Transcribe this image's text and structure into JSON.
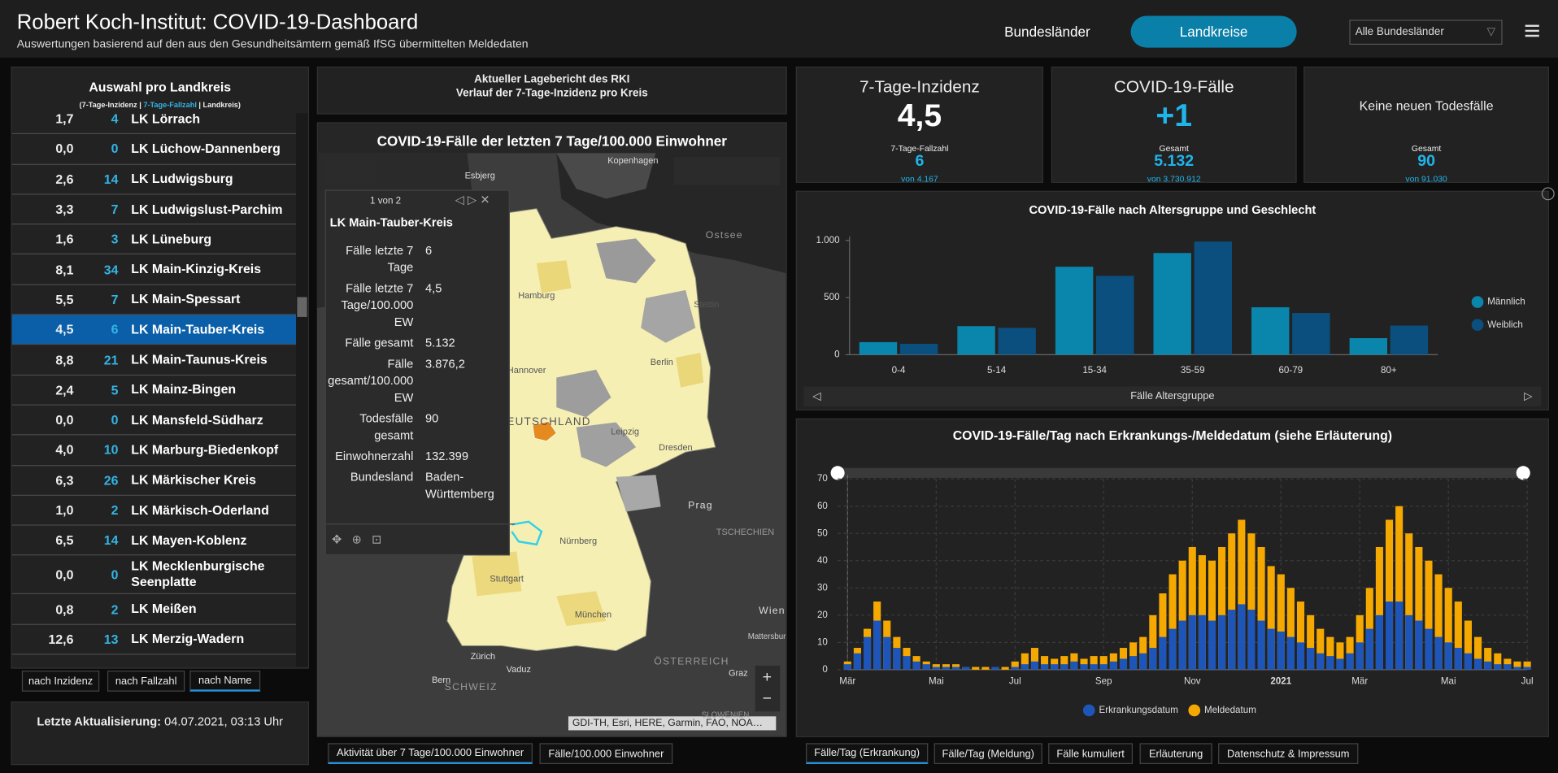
{
  "header": {
    "title": "Robert Koch-Institut: COVID-19-Dashboard",
    "subtitle": "Auswertungen basierend auf den aus den Gesundheitsämtern gemäß IfSG übermittelten Meldedaten",
    "nav": [
      "Bundesländer",
      "Landkreise"
    ],
    "dropdown": "Alle Bundesländer"
  },
  "selection": {
    "title": "Auswahl pro Landkreis",
    "legend": [
      "(7-Tage-Inzidenz |",
      "7-Tage-Fallzahl",
      "| Landkreis)"
    ],
    "rows": [
      [
        "1,7",
        4,
        "LK Lörrach"
      ],
      [
        "0,0",
        0,
        "LK Lüchow-Dannenberg"
      ],
      [
        "2,6",
        14,
        "LK Ludwigsburg"
      ],
      [
        "3,3",
        7,
        "LK Ludwigslust-Parchim"
      ],
      [
        "1,6",
        3,
        "LK Lüneburg"
      ],
      [
        "8,1",
        34,
        "LK Main-Kinzig-Kreis"
      ],
      [
        "5,5",
        7,
        "LK Main-Spessart"
      ],
      [
        "4,5",
        6,
        "LK Main-Tauber-Kreis"
      ],
      [
        "8,8",
        21,
        "LK Main-Taunus-Kreis"
      ],
      [
        "2,4",
        5,
        "LK Mainz-Bingen"
      ],
      [
        "0,0",
        0,
        "LK Mansfeld-Südharz"
      ],
      [
        "4,0",
        10,
        "LK Marburg-Biedenkopf"
      ],
      [
        "6,3",
        26,
        "LK Märkischer Kreis"
      ],
      [
        "1,0",
        2,
        "LK Märkisch-Oderland"
      ],
      [
        "6,5",
        14,
        "LK Mayen-Koblenz"
      ],
      [
        "0,0",
        0,
        "LK Mecklenburgische Seenplatte"
      ],
      [
        "0,8",
        2,
        "LK Meißen"
      ],
      [
        "12,6",
        13,
        "LK Merzig-Wadern"
      ]
    ],
    "sort": [
      "nach Inzidenz",
      "nach Fallzahl",
      "nach Name"
    ],
    "last_update": {
      "label": "Letzte Aktualisierung:",
      "value": "04.07.2021, 03:13 Uhr"
    }
  },
  "report": [
    "Aktueller Lagebericht des RKI",
    "Verlauf der 7-Tage-Inzidenz pro Kreis"
  ],
  "map": {
    "title": "COVID-19-Fälle der letzten 7 Tage/100.000 Einwohner",
    "labels": [
      "Kopenhagen",
      "Esbjerg",
      "Ostsee",
      "Hamburg",
      "Stettin",
      "Hannover",
      "Berlin",
      "DEUTSCHLAND",
      "Leipzig",
      "Dresden",
      "Prag",
      "TSCHECHIEN",
      "Nürnberg",
      "Stuttgart",
      "München",
      "Wien",
      "Mattersburg",
      "ÖSTERREICH",
      "Zürich",
      "Vaduz",
      "Bern",
      "SCHWEIZ",
      "Graz",
      "SLOWENIEN"
    ],
    "attribution": "GDI-TH, Esri, HERE, Garmin, FAO, NOA…",
    "popup": {
      "pager": "1 von 2",
      "name": "LK Main-Tauber-Kreis",
      "fields": [
        [
          "Fälle letzte 7 Tage",
          "6"
        ],
        [
          "Fälle letzte 7 Tage/100.000 EW",
          "4,5"
        ],
        [
          "Fälle gesamt",
          "5.132"
        ],
        [
          "Fälle gesamt/100.000 EW",
          "3.876,2"
        ],
        [
          "Todesfälle gesamt",
          "90"
        ],
        [
          "Einwohnerzahl",
          "132.399"
        ],
        [
          "Bundesland",
          "Baden-Württemberg"
        ]
      ]
    },
    "tabs": [
      "Aktivität über 7 Tage/100.000 Einwohner",
      "Fälle/100.000 Einwohner"
    ]
  },
  "kpis": [
    {
      "title": "7-Tage-Inzidenz",
      "value": "4,5",
      "sub_label": "7-Tage-Fallzahl",
      "sub_value": "6",
      "sub_total": "von 4.167"
    },
    {
      "title": "COVID-19-Fälle",
      "value": "+1",
      "sub_label": "Gesamt",
      "sub_value": "5.132",
      "sub_total": "von 3.730.912"
    },
    {
      "title": "Keine neuen Todesfälle",
      "sub_label": "Gesamt",
      "sub_value": "90",
      "sub_total": "von 91.030"
    }
  ],
  "tabs": [
    "Fälle/Tag (Erkrankung)",
    "Fälle/Tag (Meldung)",
    "Fälle kumuliert",
    "Erläuterung",
    "Datenschutz & Impressum"
  ],
  "chart_data": [
    {
      "type": "bar",
      "title": "COVID-19-Fälle nach Altersgruppe und Geschlecht",
      "xlabel": "Fälle Altersgruppe",
      "categories": [
        "0-4",
        "5-14",
        "15-34",
        "35-59",
        "60-79",
        "80+"
      ],
      "series": [
        {
          "name": "Männlich",
          "color": "#0a86ad",
          "values": [
            110,
            250,
            770,
            890,
            415,
            145
          ]
        },
        {
          "name": "Weiblich",
          "color": "#0b4f7e",
          "values": [
            95,
            235,
            690,
            990,
            365,
            255
          ]
        }
      ],
      "ylim": [
        0,
        1000
      ],
      "yticks": [
        0,
        500,
        {
          "value": 1000,
          "label": "1.000"
        }
      ],
      "grid": false,
      "legend": "right"
    },
    {
      "type": "bar",
      "title": "COVID-19-Fälle/Tag nach Erkrankungs-/Meldedatum (siehe Erläuterung)",
      "categories": [
        "Mär",
        null,
        null,
        null,
        null,
        null,
        null,
        null,
        null,
        "Mai",
        null,
        null,
        null,
        null,
        null,
        null,
        null,
        "Jul",
        null,
        null,
        null,
        null,
        null,
        null,
        null,
        null,
        "Sep",
        null,
        null,
        null,
        null,
        null,
        null,
        null,
        null,
        "Nov",
        null,
        null,
        null,
        null,
        null,
        null,
        null,
        null,
        "2021",
        null,
        null,
        null,
        null,
        null,
        null,
        null,
        "Mär",
        null,
        null,
        null,
        null,
        null,
        null,
        null,
        null,
        "Mai",
        null,
        null,
        null,
        null,
        null,
        null,
        null,
        "Jul"
      ],
      "series": [
        {
          "name": "Erkrankungsdatum",
          "color": "#1d55b8",
          "values": [
            2,
            6,
            12,
            18,
            12,
            8,
            5,
            3,
            2,
            1,
            1,
            1,
            1,
            0,
            0,
            1,
            0,
            1,
            2,
            3,
            2,
            2,
            2,
            3,
            2,
            2,
            2,
            3,
            4,
            5,
            6,
            8,
            12,
            15,
            18,
            20,
            20,
            18,
            20,
            22,
            24,
            22,
            18,
            15,
            14,
            12,
            10,
            8,
            6,
            5,
            4,
            6,
            10,
            15,
            20,
            25,
            25,
            20,
            18,
            15,
            12,
            10,
            8,
            6,
            4,
            3,
            2,
            2,
            1,
            1
          ]
        },
        {
          "name": "Meldedatum",
          "color": "#f5a800",
          "values": [
            3,
            8,
            15,
            25,
            18,
            12,
            8,
            5,
            3,
            2,
            2,
            2,
            1,
            1,
            1,
            1,
            1,
            3,
            6,
            8,
            5,
            4,
            5,
            6,
            4,
            5,
            5,
            6,
            8,
            10,
            12,
            20,
            28,
            35,
            40,
            45,
            42,
            40,
            45,
            50,
            55,
            50,
            45,
            38,
            35,
            30,
            25,
            20,
            15,
            12,
            10,
            12,
            20,
            30,
            45,
            55,
            60,
            50,
            45,
            40,
            35,
            30,
            25,
            18,
            12,
            8,
            6,
            4,
            3,
            3
          ]
        }
      ],
      "ylim": [
        0,
        70
      ],
      "yticks": [
        0,
        10,
        20,
        30,
        40,
        50,
        60,
        70
      ],
      "grid": true,
      "legend": "bottom"
    }
  ]
}
